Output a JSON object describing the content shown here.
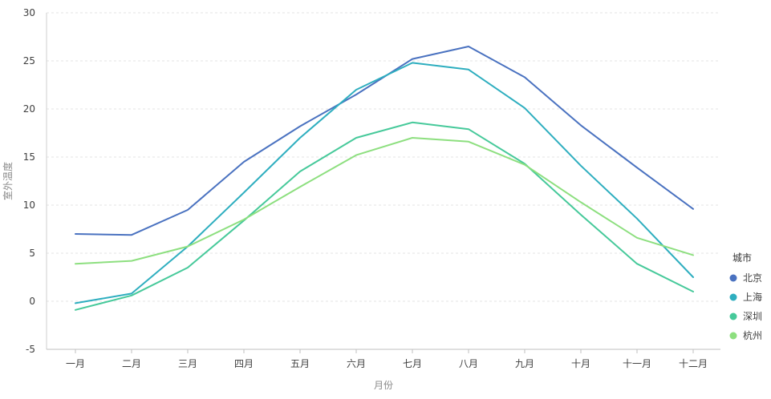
{
  "chart_data": {
    "type": "line",
    "title": "",
    "xlabel": "月份",
    "ylabel": "室外温度",
    "ylim": [
      -5,
      30
    ],
    "yticks": [
      -5,
      0,
      5,
      10,
      15,
      20,
      25,
      30
    ],
    "grid": true,
    "legend_position": "right",
    "legend_title": "城市",
    "categories": [
      "一月",
      "二月",
      "三月",
      "四月",
      "五月",
      "六月",
      "七月",
      "八月",
      "九月",
      "十月",
      "十一月",
      "十二月"
    ],
    "series": [
      {
        "name": "北京",
        "color": "#4a72c0",
        "values": [
          7.0,
          6.9,
          9.5,
          14.5,
          18.2,
          21.5,
          25.2,
          26.5,
          23.3,
          18.3,
          13.9,
          9.6
        ]
      },
      {
        "name": "上海",
        "color": "#2eaebf",
        "values": [
          -0.2,
          0.8,
          5.7,
          11.3,
          17.0,
          22.0,
          24.8,
          24.1,
          20.1,
          14.1,
          8.6,
          2.5
        ]
      },
      {
        "name": "深圳",
        "color": "#46c99a",
        "values": [
          -0.9,
          0.6,
          3.5,
          8.4,
          13.5,
          17.0,
          18.6,
          17.9,
          14.3,
          9.0,
          3.9,
          1.0
        ]
      },
      {
        "name": "杭州",
        "color": "#8ddf7f",
        "values": [
          3.9,
          4.2,
          5.7,
          8.5,
          11.9,
          15.2,
          17.0,
          16.6,
          14.2,
          10.3,
          6.6,
          4.8
        ]
      }
    ]
  }
}
